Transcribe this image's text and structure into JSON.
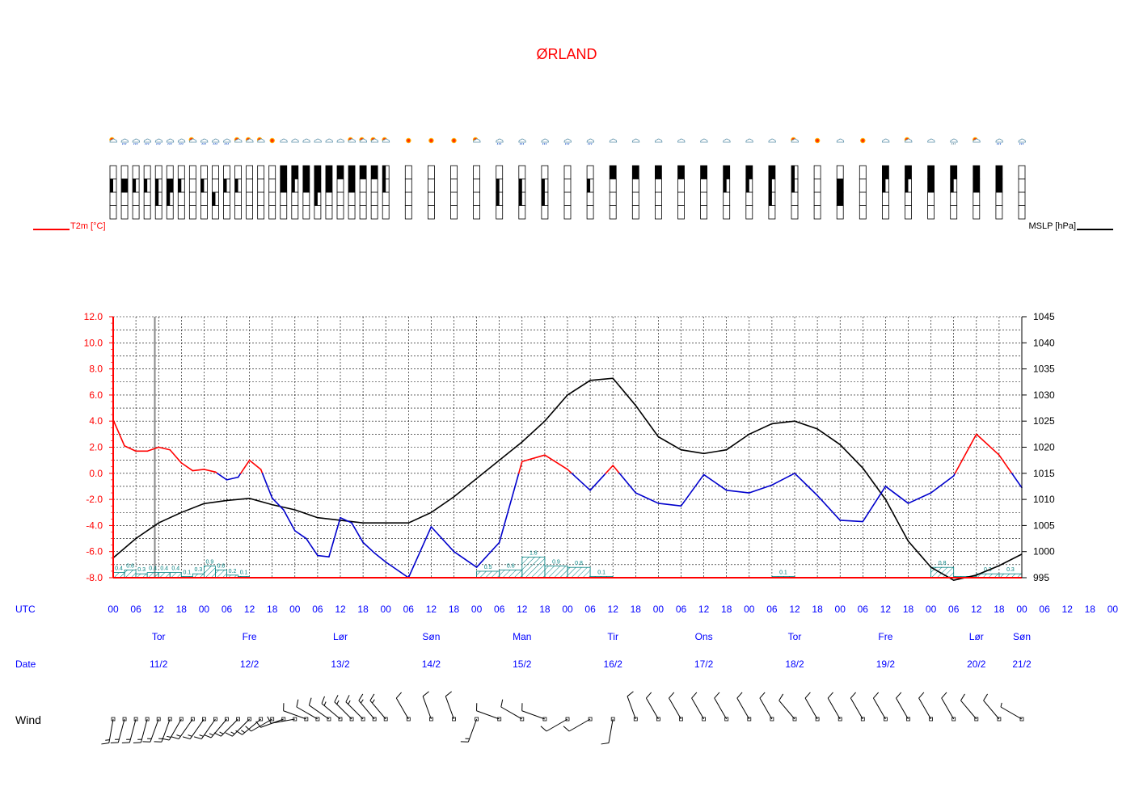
{
  "title": "ØRLAND",
  "labels": {
    "utc": "UTC",
    "date": "Date",
    "wind": "Wind",
    "t2m": "T2m [°C]",
    "mslp": "MSLP [hPa]"
  },
  "colors": {
    "title": "#ff0000",
    "temp_above_zero": "#ff0000",
    "temp_below_zero": "#0000cc",
    "pressure": "#000000",
    "precip": "#008080",
    "grid": "#000000",
    "blue_text": "#0000ff"
  },
  "chart_data": {
    "type": "line",
    "x_unit": "hours since 11/2 00 UTC",
    "utc_ticks": [
      "00",
      "06",
      "12",
      "18",
      "00",
      "06",
      "12",
      "18",
      "00",
      "06",
      "12",
      "18",
      "00",
      "06",
      "12",
      "18",
      "00",
      "06",
      "12",
      "18",
      "00",
      "06",
      "12",
      "18",
      "00",
      "06",
      "12",
      "18",
      "00",
      "06",
      "12",
      "18",
      "00",
      "06",
      "12",
      "18",
      "00",
      "06",
      "12",
      "18",
      "00",
      "06",
      "12",
      "18",
      "00"
    ],
    "days": [
      {
        "name": "Tor",
        "date": "11/2"
      },
      {
        "name": "Fre",
        "date": "12/2"
      },
      {
        "name": "Lør",
        "date": "13/2"
      },
      {
        "name": "Søn",
        "date": "14/2"
      },
      {
        "name": "Man",
        "date": "15/2"
      },
      {
        "name": "Tir",
        "date": "16/2"
      },
      {
        "name": "Ons",
        "date": "17/2"
      },
      {
        "name": "Tor",
        "date": "18/2"
      },
      {
        "name": "Fre",
        "date": "19/2"
      },
      {
        "name": "Lør",
        "date": "20/2"
      },
      {
        "name": "Søn",
        "date": "21/2"
      }
    ],
    "y_left": {
      "label": "T2m [°C]",
      "min": -8,
      "max": 12,
      "ticks": [
        "12.0",
        "10.0",
        "8.0",
        "6.0",
        "4.0",
        "2.0",
        "0.0",
        "-2.0",
        "-4.0",
        "-6.0",
        "-8.0"
      ]
    },
    "y_right": {
      "label": "MSLP [hPa]",
      "min": 995,
      "max": 1045,
      "ticks": [
        "1045",
        "1040",
        "1035",
        "1030",
        "1025",
        "1020",
        "1015",
        "1010",
        "1005",
        "1000",
        "995"
      ]
    },
    "series": [
      {
        "name": "T2m [°C]",
        "x": [
          0,
          3,
          6,
          9,
          12,
          15,
          18,
          21,
          24,
          27,
          30,
          33,
          36,
          39,
          42,
          45,
          48,
          51,
          54,
          57,
          60,
          63,
          66,
          69,
          72,
          78,
          84,
          90,
          96,
          102,
          108,
          114,
          120,
          126,
          132,
          138,
          144,
          150,
          156,
          162,
          168,
          174,
          180,
          186,
          192,
          198,
          204,
          210,
          216,
          222,
          228,
          234,
          240
        ],
        "values": [
          4.1,
          2.1,
          1.7,
          1.7,
          2.0,
          1.8,
          0.8,
          0.2,
          0.3,
          0.1,
          -0.5,
          -0.3,
          1.0,
          0.3,
          -1.9,
          -2.8,
          -4.4,
          -5.0,
          -6.3,
          -6.4,
          -3.4,
          -3.8,
          -5.3,
          -6.1,
          -6.8,
          -8.0,
          -4.1,
          -6.0,
          -7.2,
          -5.3,
          0.9,
          1.4,
          0.3,
          -1.3,
          0.6,
          -1.5,
          -2.3,
          -2.5,
          -0.1,
          -1.3,
          -1.5,
          -0.9,
          0.0,
          -1.7,
          -3.6,
          -3.7,
          -1.0,
          -2.3,
          -1.5,
          -0.2,
          3.0,
          1.4,
          -1.1
        ]
      },
      {
        "name": "MSLP [hPa]",
        "x": [
          0,
          6,
          12,
          18,
          24,
          30,
          36,
          42,
          48,
          54,
          60,
          66,
          72,
          78,
          84,
          90,
          96,
          102,
          108,
          114,
          120,
          126,
          132,
          138,
          144,
          150,
          156,
          162,
          168,
          174,
          180,
          186,
          192,
          198,
          204,
          210,
          216,
          222,
          228,
          234,
          240
        ],
        "values": [
          998.8,
          1002.5,
          1005.5,
          1007.5,
          1009.2,
          1009.8,
          1010.2,
          1009.0,
          1008.0,
          1006.5,
          1006.0,
          1005.5,
          1005.5,
          1005.5,
          1007.5,
          1010.5,
          1014.0,
          1017.5,
          1021.0,
          1025.0,
          1030.0,
          1032.8,
          1033.2,
          1028.0,
          1022.0,
          1019.5,
          1018.8,
          1019.5,
          1022.5,
          1024.5,
          1025.0,
          1023.5,
          1020.5,
          1016.0,
          1010.0,
          1002.0,
          997.0,
          994.5,
          995.5,
          997.3,
          999.5
        ]
      }
    ],
    "precip": {
      "unit": "mm",
      "bars": [
        {
          "x": 0,
          "w": 3,
          "v": 0.4,
          "label": "0.4"
        },
        {
          "x": 3,
          "w": 3,
          "v": 0.6,
          "label": "0.6"
        },
        {
          "x": 6,
          "w": 3,
          "v": 0.3,
          "label": "0.3"
        },
        {
          "x": 9,
          "w": 3,
          "v": 0.4,
          "label": "0.4"
        },
        {
          "x": 12,
          "w": 3,
          "v": 0.4,
          "label": "0.4"
        },
        {
          "x": 15,
          "w": 3,
          "v": 0.4,
          "label": "0.4"
        },
        {
          "x": 18,
          "w": 3,
          "v": 0.1,
          "label": "0.1"
        },
        {
          "x": 21,
          "w": 3,
          "v": 0.3,
          "label": "0.3"
        },
        {
          "x": 24,
          "w": 3,
          "v": 0.9,
          "label": "0.9"
        },
        {
          "x": 27,
          "w": 3,
          "v": 0.6,
          "label": "0.6"
        },
        {
          "x": 30,
          "w": 3,
          "v": 0.2,
          "label": "0.2"
        },
        {
          "x": 33,
          "w": 3,
          "v": 0.1,
          "label": "0.1"
        },
        {
          "x": 96,
          "w": 6,
          "v": 0.5,
          "label": "0.5"
        },
        {
          "x": 102,
          "w": 6,
          "v": 0.6,
          "label": "0.6"
        },
        {
          "x": 108,
          "w": 6,
          "v": 1.6,
          "label": "1.6"
        },
        {
          "x": 114,
          "w": 6,
          "v": 0.9,
          "label": "0.9"
        },
        {
          "x": 120,
          "w": 6,
          "v": 0.8,
          "label": "0.8"
        },
        {
          "x": 126,
          "w": 6,
          "v": 0.1,
          "label": "0.1"
        },
        {
          "x": 174,
          "w": 6,
          "v": 0.1,
          "label": "0.1"
        },
        {
          "x": 216,
          "w": 6,
          "v": 0.8,
          "label": "0.8"
        },
        {
          "x": 222,
          "w": 6,
          "v": 0.1,
          "label": ""
        },
        {
          "x": 228,
          "w": 6,
          "v": 0.3,
          "label": "0.3"
        },
        {
          "x": 234,
          "w": 6,
          "v": 0.3,
          "label": "0.3"
        }
      ]
    },
    "time_marker_hours": 11,
    "grid": true,
    "legend_placement": "top-left and top-right"
  },
  "symbols": {
    "hours": [
      0,
      3,
      6,
      9,
      12,
      15,
      18,
      21,
      24,
      27,
      30,
      33,
      36,
      39,
      42,
      45,
      48,
      51,
      54,
      57,
      60,
      63,
      66,
      69,
      72,
      78,
      84,
      90,
      96,
      102,
      108,
      114,
      120,
      126,
      132,
      138,
      144,
      150,
      156,
      162,
      168,
      174,
      180,
      186,
      192,
      198,
      204,
      210,
      216,
      222,
      228,
      234,
      240
    ],
    "kinds": [
      "sun-cloud",
      "rain-cloud",
      "rain-cloud",
      "rain-cloud",
      "rain-cloud",
      "rain-cloud",
      "rain-cloud",
      "sun-cloud",
      "rain-cloud",
      "rain-cloud",
      "rain-cloud",
      "sun-cloud",
      "sun-cloud",
      "sun-cloud",
      "sun",
      "cloud",
      "cloud",
      "cloud",
      "cloud",
      "cloud",
      "cloud",
      "sun-cloud",
      "sun-cloud",
      "sun-cloud",
      "sun-cloud",
      "sun",
      "sun",
      "sun",
      "sun-cloud",
      "rain-cloud",
      "rain-cloud",
      "rain-cloud",
      "rain-cloud",
      "rain-cloud",
      "cloud",
      "cloud",
      "cloud",
      "cloud",
      "cloud",
      "cloud",
      "cloud",
      "cloud",
      "sun-cloud",
      "sun",
      "cloud",
      "sun",
      "cloud",
      "sun-cloud",
      "cloud",
      "snow-cloud",
      "sun-cloud",
      "rain-cloud",
      "rain-cloud"
    ]
  },
  "cloud_bars": {
    "hours": [
      0,
      3,
      6,
      9,
      12,
      15,
      18,
      21,
      24,
      27,
      30,
      33,
      36,
      39,
      42,
      45,
      48,
      51,
      54,
      57,
      60,
      63,
      66,
      69,
      72,
      78,
      84,
      90,
      96,
      102,
      108,
      114,
      120,
      126,
      132,
      138,
      144,
      150,
      156,
      162,
      168,
      174,
      180,
      186,
      192,
      198,
      204,
      210,
      216,
      222,
      228,
      234,
      240
    ],
    "layers": [
      [
        0,
        0,
        0,
        0,
        0,
        0,
        0,
        0,
        0,
        0,
        0,
        0,
        0,
        0,
        0,
        1,
        1,
        1,
        1,
        1,
        1,
        1,
        1,
        1,
        0.5,
        0,
        0,
        0,
        0,
        0,
        0,
        0,
        0,
        0,
        1,
        1,
        1,
        1,
        1,
        1,
        1,
        1,
        0.5,
        0,
        0,
        0,
        1,
        1,
        1,
        1,
        1,
        1,
        0
      ],
      [
        0.5,
        1,
        0.5,
        0.5,
        0.5,
        1,
        0.5,
        0,
        0.5,
        0,
        0.5,
        0.5,
        0,
        0,
        0,
        1,
        0.5,
        1,
        1,
        1,
        0,
        1,
        0,
        0,
        0.5,
        0,
        0,
        0,
        0,
        0.5,
        0.5,
        0.5,
        0,
        0.5,
        0,
        0,
        0,
        0,
        0,
        0.5,
        0.5,
        0.5,
        0.5,
        0,
        1,
        0,
        0.5,
        0.5,
        1,
        0.5,
        1,
        1,
        0
      ],
      [
        0,
        0,
        0,
        0,
        0.5,
        0.5,
        0,
        0,
        0,
        0.5,
        0,
        0,
        0,
        0,
        0,
        0,
        0,
        0,
        0.5,
        0,
        0,
        0,
        0,
        0,
        0,
        0,
        0,
        0,
        0,
        0.5,
        0.5,
        0.5,
        0,
        0,
        0,
        0,
        0,
        0,
        0,
        0,
        0,
        0.5,
        0,
        0,
        1,
        0,
        0,
        0,
        0,
        0,
        0,
        0,
        0
      ],
      [
        0,
        0,
        0,
        0,
        0,
        0,
        0,
        0,
        0,
        0,
        0,
        0,
        0,
        0,
        0,
        0,
        0,
        0,
        0,
        0,
        0,
        0,
        0,
        0,
        0,
        0,
        0,
        0,
        0,
        0,
        0,
        0,
        0,
        0,
        0,
        0,
        0,
        0,
        0,
        0,
        0,
        0,
        0,
        0,
        0,
        0,
        0,
        0,
        0,
        0,
        0,
        0,
        0
      ]
    ]
  },
  "wind_barbs": {
    "hours": [
      0,
      3,
      6,
      9,
      12,
      15,
      18,
      21,
      24,
      27,
      30,
      33,
      36,
      39,
      42,
      45,
      48,
      51,
      54,
      57,
      60,
      63,
      66,
      69,
      72,
      78,
      84,
      90,
      96,
      102,
      108,
      114,
      120,
      126,
      132,
      138,
      144,
      150,
      156,
      162,
      168,
      174,
      180,
      186,
      192,
      198,
      204,
      210,
      216,
      222,
      228,
      234,
      240
    ],
    "dir_deg": [
      190,
      195,
      195,
      195,
      200,
      200,
      210,
      215,
      215,
      215,
      220,
      225,
      225,
      230,
      240,
      250,
      260,
      290,
      300,
      305,
      310,
      315,
      315,
      320,
      320,
      330,
      340,
      340,
      200,
      290,
      300,
      290,
      240,
      240,
      190,
      340,
      330,
      330,
      330,
      330,
      330,
      330,
      320,
      330,
      330,
      330,
      330,
      330,
      330,
      330,
      320,
      320,
      300
    ],
    "speed_kt": [
      15,
      15,
      15,
      15,
      15,
      15,
      15,
      15,
      15,
      15,
      15,
      15,
      15,
      15,
      10,
      10,
      10,
      10,
      10,
      10,
      15,
      15,
      15,
      15,
      15,
      10,
      10,
      10,
      15,
      10,
      10,
      10,
      10,
      10,
      10,
      10,
      10,
      10,
      10,
      10,
      10,
      10,
      10,
      10,
      10,
      10,
      10,
      10,
      10,
      10,
      10,
      10,
      5
    ]
  }
}
